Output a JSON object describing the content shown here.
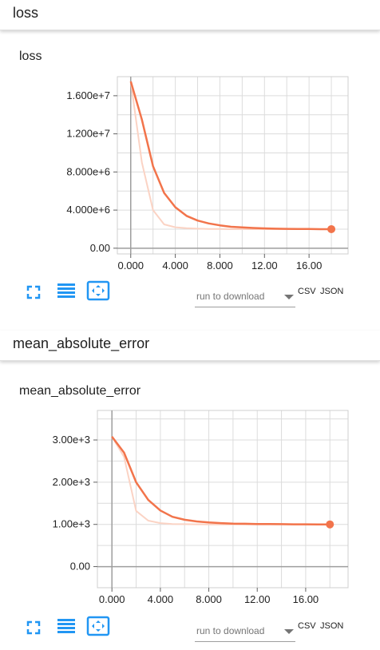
{
  "colors": {
    "accent": "#f2744b",
    "accent_light": "#fbd3c4",
    "icon_blue": "#2196f3",
    "grid": "#dcdcdc",
    "axis": "#9e9e9e"
  },
  "sections": [
    {
      "header_title": "loss",
      "chart_title": "loss",
      "toolbar": {
        "icons": [
          "fullscreen-icon",
          "list-icon",
          "fit-domain-icon"
        ],
        "run_select_label": "run to download",
        "csv_label": "CSV",
        "json_label": "JSON"
      },
      "chart_data": {
        "type": "line",
        "title": "loss",
        "xlabel": "",
        "ylabel": "",
        "xlim": [
          -1.2,
          19.5
        ],
        "ylim": [
          -600000,
          18000000
        ],
        "x_ticks": [
          0,
          4,
          8,
          12,
          16
        ],
        "x_tick_labels": [
          "0.000",
          "4.000",
          "8.000",
          "12.00",
          "16.00"
        ],
        "y_ticks": [
          0,
          4000000,
          8000000,
          12000000,
          16000000
        ],
        "y_tick_labels": [
          "0.00",
          "4.000e+6",
          "8.000e+6",
          "1.200e+7",
          "1.600e+7"
        ],
        "grid": true,
        "series": [
          {
            "style": "raw",
            "x": [
              0,
              1,
              2,
              3,
              4,
              5,
              6,
              7,
              8,
              9,
              10,
              11,
              12,
              13,
              14,
              15,
              16,
              17,
              18
            ],
            "y": [
              17500000,
              9000000,
              4000000,
              2500000,
              2200000,
              2100000,
              2050000,
              2020000,
              2010000,
              2000000,
              2000000,
              2000000,
              2000000,
              2000000,
              2000000,
              2000000,
              2000000,
              2000000,
              2000000
            ]
          },
          {
            "style": "smoothed",
            "x": [
              0,
              1,
              2,
              3,
              4,
              5,
              6,
              7,
              8,
              9,
              10,
              11,
              12,
              13,
              14,
              15,
              16,
              17,
              18
            ],
            "y": [
              17500000,
              13500000,
              8600000,
              5800000,
              4300000,
              3400000,
              2900000,
              2600000,
              2400000,
              2250000,
              2180000,
              2120000,
              2080000,
              2050000,
              2030000,
              2020000,
              2010000,
              2000000,
              2000000
            ]
          }
        ]
      }
    },
    {
      "header_title": "mean_absolute_error",
      "chart_title": "mean_absolute_error",
      "toolbar": {
        "icons": [
          "fullscreen-icon",
          "list-icon",
          "fit-domain-icon"
        ],
        "run_select_label": "run to download",
        "csv_label": "CSV",
        "json_label": "JSON"
      },
      "chart_data": {
        "type": "line",
        "title": "mean_absolute_error",
        "xlabel": "",
        "ylabel": "",
        "xlim": [
          -1.2,
          19.5
        ],
        "ylim": [
          -500,
          3700
        ],
        "x_ticks": [
          0,
          4,
          8,
          12,
          16
        ],
        "x_tick_labels": [
          "0.000",
          "4.000",
          "8.000",
          "12.00",
          "16.00"
        ],
        "y_ticks": [
          0,
          1000,
          2000,
          3000
        ],
        "y_tick_labels": [
          "0.00",
          "1.00e+3",
          "2.00e+3",
          "3.00e+3"
        ],
        "grid": true,
        "series": [
          {
            "style": "raw",
            "x": [
              0,
              1,
              2,
              3,
              4,
              5,
              6,
              7,
              8,
              9,
              10,
              11,
              12,
              13,
              14,
              15,
              16,
              17,
              18
            ],
            "y": [
              3080,
              2600,
              1320,
              1090,
              1030,
              1010,
              1005,
              1002,
              1000,
              1000,
              1000,
              1000,
              1000,
              1000,
              1000,
              1000,
              1000,
              1000,
              1000
            ]
          },
          {
            "style": "smoothed",
            "x": [
              0,
              1,
              2,
              3,
              4,
              5,
              6,
              7,
              8,
              9,
              10,
              11,
              12,
              13,
              14,
              15,
              16,
              17,
              18
            ],
            "y": [
              3080,
              2700,
              2000,
              1580,
              1330,
              1180,
              1110,
              1070,
              1045,
              1030,
              1020,
              1015,
              1010,
              1008,
              1005,
              1003,
              1002,
              1001,
              1000
            ]
          }
        ]
      }
    }
  ]
}
